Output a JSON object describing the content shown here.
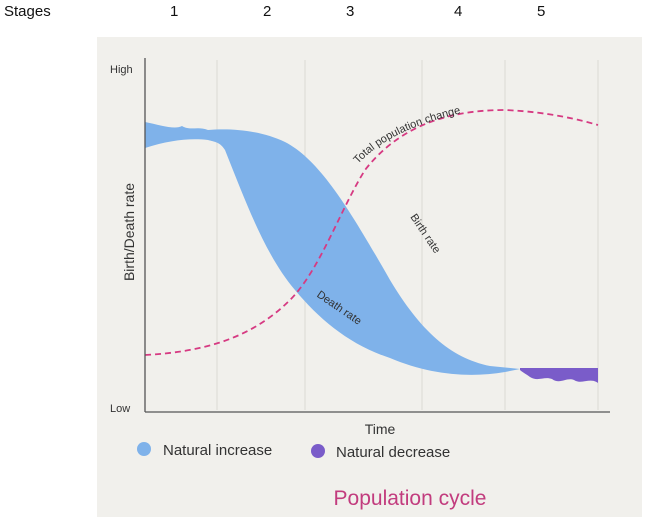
{
  "header": {
    "stages_label": "Stages",
    "stages": [
      "1",
      "2",
      "3",
      "4",
      "5"
    ]
  },
  "axes": {
    "y_label": "Birth/Death rate",
    "y_high": "High",
    "y_low": "Low",
    "x_label": "Time"
  },
  "curves": {
    "total_population": "Total population change",
    "birth_rate": "Birth rate",
    "death_rate": "Death rate"
  },
  "legend": [
    {
      "label": "Natural increase",
      "color": "#7fb2ea"
    },
    {
      "label": "Natural decrease",
      "color": "#7a5cc9"
    }
  ],
  "caption": "Population cycle",
  "colors": {
    "natural_increase": "#7fb2ea",
    "natural_decrease": "#7a5cc9",
    "population_line": "#d63a82",
    "caption": "#c23c7e"
  }
}
